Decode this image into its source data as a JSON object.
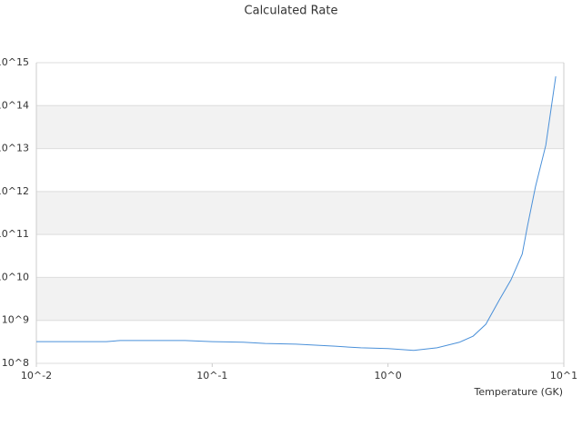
{
  "chart_data": {
    "type": "line",
    "title": "Calculated Rate",
    "x_label": "Temperature (GK)",
    "x": [
      0.01,
      0.025,
      0.03,
      0.07,
      0.1,
      0.15,
      0.2,
      0.3,
      0.5,
      0.7,
      1.0,
      1.4,
      1.9,
      2.55,
      3.05,
      3.6,
      4.3,
      5.0,
      5.8,
      6.2,
      6.9,
      7.9,
      9.0
    ],
    "values": [
      320000000.0,
      320000000.0,
      340000000.0,
      340000000.0,
      320000000.0,
      310000000.0,
      290000000.0,
      280000000.0,
      250000000.0,
      230000000.0,
      220000000.0,
      200000000.0,
      230000000.0,
      310000000.0,
      430000000.0,
      810000000.0,
      3000000000.0,
      8700000000.0,
      35000000000.0,
      150000000000.0,
      1300000000000.0,
      12000000000000.0,
      480000000000000.0
    ],
    "color": "#4a90d9",
    "xlog": true,
    "ylog": true,
    "xlim": [
      0.01,
      10
    ],
    "ylim": [
      100000000.0,
      1000000000000000.0
    ],
    "xticks": [
      {
        "value": 0.01,
        "label": "10^-2"
      },
      {
        "value": 0.1,
        "label": "10^-1"
      },
      {
        "value": 1,
        "label": "10^0"
      },
      {
        "value": 10,
        "label": "10^1"
      }
    ],
    "yticks": [
      {
        "value": 100000000.0,
        "label": "10^8"
      },
      {
        "value": 1000000000.0,
        "label": "10^9"
      },
      {
        "value": 10000000000.0,
        "label": "10^10"
      },
      {
        "value": 100000000000.0,
        "label": "10^11"
      },
      {
        "value": 1000000000000.0,
        "label": "10^12"
      },
      {
        "value": 10000000000000.0,
        "label": "10^13"
      },
      {
        "value": 100000000000000.0,
        "label": "10^14"
      },
      {
        "value": 1000000000000000.0,
        "label": "10^15"
      }
    ],
    "grid": true,
    "bands": true
  }
}
